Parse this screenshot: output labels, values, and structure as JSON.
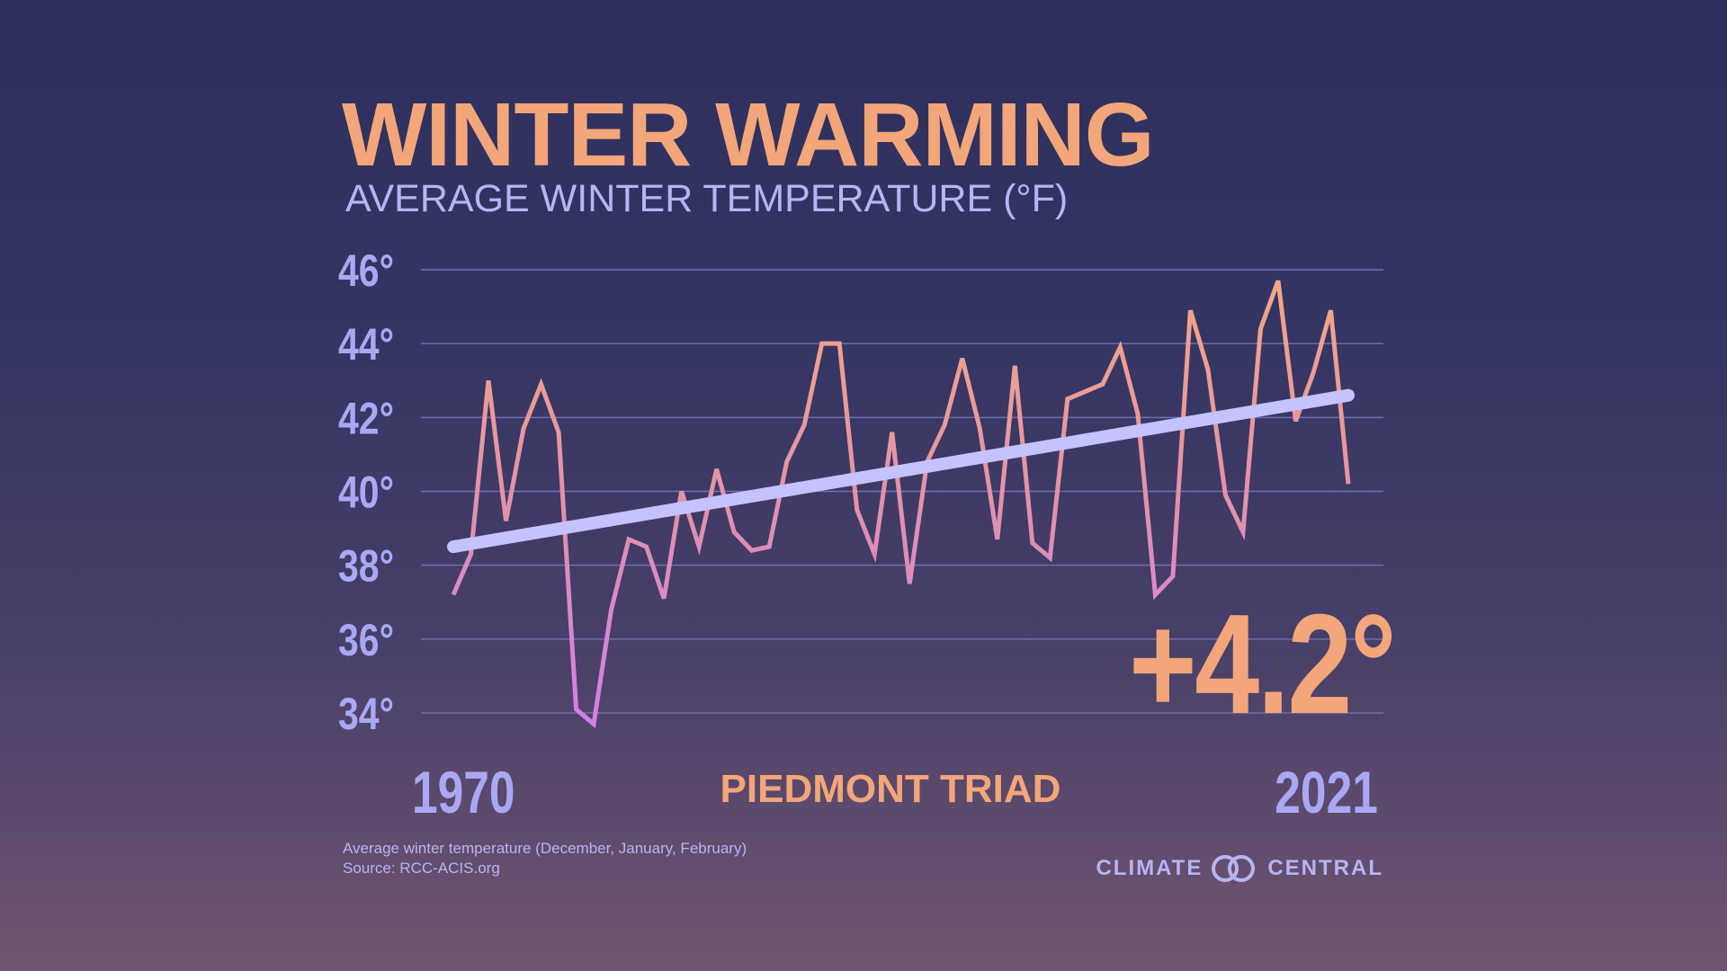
{
  "title": "WINTER WARMING",
  "subtitle": "AVERAGE WINTER TEMPERATURE (°F)",
  "region": "PIEDMONT TRIAD",
  "change_label": "+4.2°",
  "start_year_label": "1970",
  "end_year_label": "2021",
  "footnote": {
    "line1": "Average winter temperature (December, January, February)",
    "line2": "Source: RCC-ACIS.org"
  },
  "logo": {
    "left": "CLIMATE",
    "right": "CENTRAL"
  },
  "colors": {
    "title": "#f2a679",
    "axis": "#a9a8f3",
    "trend": "#c4c3ff",
    "line_top": "#f2a58a",
    "line_bottom": "#d77fe6",
    "grid": "#6e6eb0"
  },
  "chart_data": {
    "type": "line",
    "title": "WINTER WARMING",
    "ylabel": "AVERAGE WINTER TEMPERATURE (°F)",
    "ylim": [
      34,
      46
    ],
    "yticks": [
      46,
      44,
      42,
      40,
      38,
      36,
      34
    ],
    "ytick_labels": [
      "46°",
      "44°",
      "42°",
      "40°",
      "38°",
      "36°",
      "34°"
    ],
    "grid": true,
    "x_start": 1970,
    "x_end": 2021,
    "x": [
      1970,
      1971,
      1972,
      1973,
      1974,
      1975,
      1976,
      1977,
      1978,
      1979,
      1980,
      1981,
      1982,
      1983,
      1984,
      1985,
      1986,
      1987,
      1988,
      1989,
      1990,
      1991,
      1992,
      1993,
      1994,
      1995,
      1996,
      1997,
      1998,
      1999,
      2000,
      2001,
      2002,
      2003,
      2004,
      2005,
      2006,
      2007,
      2008,
      2009,
      2010,
      2011,
      2012,
      2013,
      2014,
      2015,
      2016,
      2017,
      2018,
      2019,
      2020,
      2021
    ],
    "series": [
      {
        "values": [
          37.2,
          38.3,
          43.0,
          39.2,
          41.7,
          42.9,
          41.6,
          34.1,
          33.7,
          36.8,
          38.7,
          38.5,
          37.1,
          40.0,
          38.5,
          40.6,
          38.9,
          38.4,
          38.5,
          40.8,
          41.8,
          44.0,
          44.0,
          39.5,
          38.3,
          41.6,
          37.5,
          40.8,
          41.8,
          43.6,
          41.7,
          38.7,
          43.4,
          38.6,
          38.2,
          42.5,
          42.7,
          42.9,
          43.9,
          42.1,
          37.2,
          37.7,
          44.9,
          43.3,
          39.9,
          38.9,
          44.4,
          45.7,
          41.9,
          43.2,
          44.9,
          40.2
        ]
      }
    ],
    "trend": {
      "start": 38.5,
      "end": 42.6,
      "change": 4.2
    }
  }
}
